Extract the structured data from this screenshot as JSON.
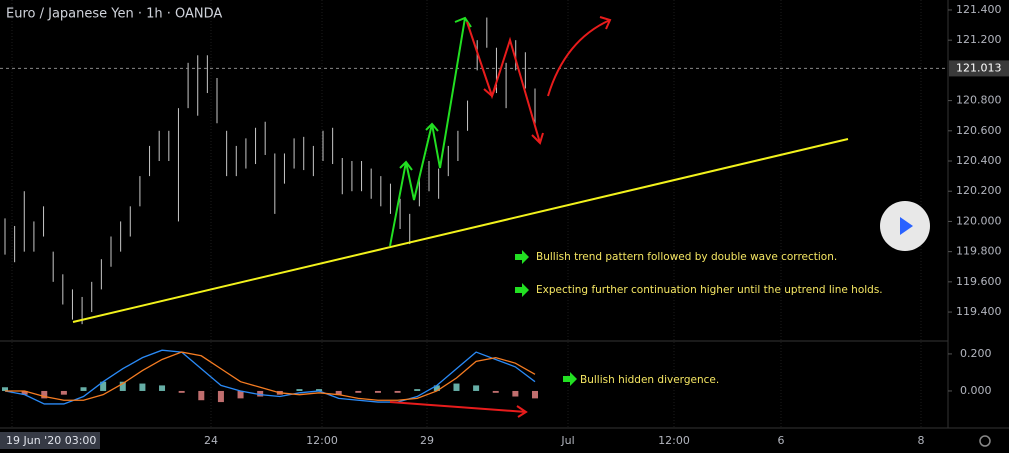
{
  "chart_data": [
    {
      "type": "ohlc",
      "title": "Euro / Japanese Yen · 1h · OANDA",
      "ylim": [
        119.215,
        121.466
      ],
      "yticks": [
        {
          "value": 121.4,
          "label": "121.400"
        },
        {
          "value": 121.2,
          "label": "121.200"
        },
        {
          "value": 120.8,
          "label": "120.800"
        },
        {
          "value": 120.6,
          "label": "120.600"
        },
        {
          "value": 120.4,
          "label": "120.400"
        },
        {
          "value": 120.2,
          "label": "120.200"
        },
        {
          "value": 120,
          "label": "120.000"
        },
        {
          "value": 119.8,
          "label": "119.800"
        },
        {
          "value": 119.6,
          "label": "119.600"
        },
        {
          "value": 119.4,
          "label": "119.400"
        }
      ],
      "last_price": {
        "value": 121.013,
        "label": "121.013"
      },
      "color": "#c8c8c8",
      "high": [
        120.02,
        119.97,
        120.2,
        120.0,
        120.1,
        119.8,
        119.65,
        119.55,
        119.5,
        119.6,
        119.75,
        119.9,
        120.0,
        120.1,
        120.3,
        120.5,
        120.6,
        120.6,
        120.75,
        121.05,
        121.1,
        121.1,
        120.95,
        120.6,
        120.5,
        120.55,
        120.62,
        120.66,
        120.45,
        120.45,
        120.55,
        120.56,
        120.5,
        120.6,
        120.62,
        120.42,
        120.4,
        120.4,
        120.35,
        120.3,
        120.25,
        120.15,
        120.05,
        120.3,
        120.4,
        120.35,
        120.5,
        120.6,
        120.8,
        121.2,
        121.35,
        121.15,
        121.05,
        121.2,
        121.12,
        120.88
      ],
      "low": [
        119.78,
        119.73,
        119.8,
        119.8,
        119.9,
        119.6,
        119.45,
        119.35,
        119.32,
        119.4,
        119.55,
        119.7,
        119.8,
        119.9,
        120.1,
        120.3,
        120.4,
        120.4,
        120.0,
        120.75,
        120.7,
        120.85,
        120.65,
        120.3,
        120.3,
        120.35,
        120.38,
        120.44,
        120.05,
        120.25,
        120.35,
        120.34,
        120.3,
        120.4,
        120.38,
        120.18,
        120.2,
        120.2,
        120.15,
        120.1,
        120.05,
        119.95,
        119.85,
        120.1,
        120.2,
        120.15,
        120.3,
        120.4,
        120.6,
        121.0,
        121.15,
        120.85,
        120.75,
        121.0,
        120.88,
        120.62
      ]
    },
    {
      "type": "macd",
      "ylim": [
        -0.2,
        0.259
      ],
      "yticks": [
        {
          "value": 0.2,
          "label": "0.200"
        },
        {
          "value": 0,
          "label": "0.000"
        }
      ],
      "series": [
        {
          "color": "#2a8af6",
          "values": [
            0.0,
            -0.02,
            -0.07,
            -0.07,
            -0.03,
            0.05,
            0.12,
            0.18,
            0.22,
            0.21,
            0.12,
            0.03,
            0.0,
            -0.02,
            -0.03,
            -0.01,
            0.0,
            -0.04,
            -0.05,
            -0.06,
            -0.06,
            -0.03,
            0.03,
            0.12,
            0.21,
            0.17,
            0.13,
            0.05
          ]
        },
        {
          "color": "#f57c22",
          "values": [
            0.0,
            0.0,
            -0.03,
            -0.05,
            -0.05,
            -0.02,
            0.04,
            0.11,
            0.17,
            0.21,
            0.19,
            0.12,
            0.05,
            0.02,
            -0.01,
            -0.02,
            -0.01,
            -0.02,
            -0.04,
            -0.05,
            -0.05,
            -0.04,
            0.0,
            0.07,
            0.16,
            0.18,
            0.15,
            0.09
          ]
        }
      ],
      "histogram": {
        "colors": [
          "#7fd9d0",
          "#f08a8a"
        ],
        "values": [
          0.02,
          -0.02,
          -0.04,
          -0.02,
          0.02,
          0.05,
          0.05,
          0.04,
          0.03,
          -0.01,
          -0.05,
          -0.06,
          -0.04,
          -0.03,
          -0.02,
          0.01,
          0.01,
          -0.02,
          -0.01,
          -0.01,
          -0.01,
          0.01,
          0.03,
          0.04,
          0.03,
          -0.01,
          -0.03,
          -0.04
        ]
      }
    }
  ],
  "time_axis": {
    "cursor_label": "19 Jun '20   03:00",
    "labels": [
      "24",
      "12:00",
      "29",
      "Jul",
      "12:00",
      "6",
      "8"
    ]
  },
  "annotations": [
    "Bullish trend pattern followed by double wave correction.",
    "Expecting further continuation higher until the uptrend line holds.",
    "Bullish hidden divergence."
  ]
}
